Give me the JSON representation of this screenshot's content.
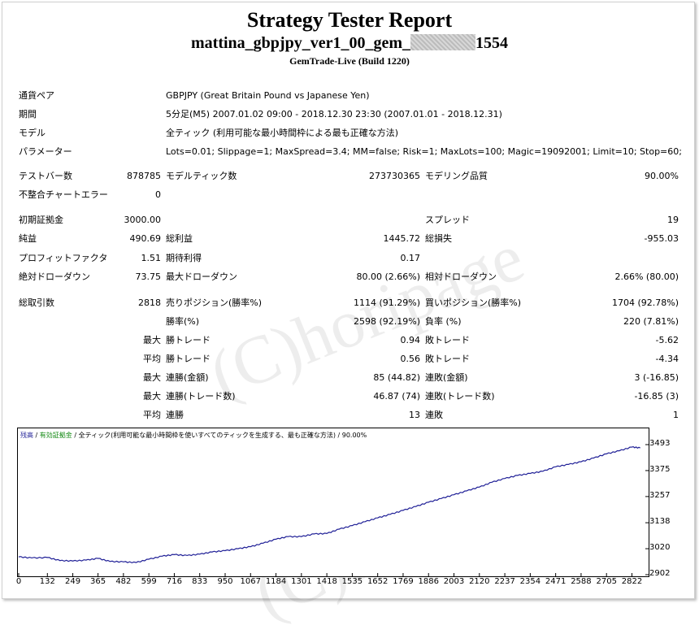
{
  "header": {
    "title": "Strategy Tester Report",
    "ea_name_prefix": "mattina_gbpjpy_ver1_00_gem_",
    "ea_name_suffix": "1554",
    "build": "GemTrade-Live (Build 1220)"
  },
  "watermark": "(C)horipage",
  "info": {
    "symbol_label": "通貨ペア",
    "symbol_value": "GBPJPY (Great Britain Pound vs Japanese Yen)",
    "period_label": "期間",
    "period_value": "5分足(M5) 2007.01.02 09:00 - 2018.12.30 23:30 (2007.01.01 - 2018.12.31)",
    "model_label": "モデル",
    "model_value": "全ティック (利用可能な最小時間枠による最も正確な方法)",
    "params_label": "パラメーター",
    "params_value": "Lots=0.01; Slippage=1; MaxSpread=3.4; MM=false; Risk=1; MaxLots=100; Magic=19092001; Limit=10; Stop=60;"
  },
  "stats": {
    "bars_label": "テストバー数",
    "bars_value": "878785",
    "ticks_label": "モデルティック数",
    "ticks_value": "273730365",
    "quality_label": "モデリング品質",
    "quality_value": "90.00%",
    "mismatch_label": "不整合チャートエラー",
    "mismatch_value": "0",
    "deposit_label": "初期証拠金",
    "deposit_value": "3000.00",
    "spread_label": "スプレッド",
    "spread_value": "19",
    "net_label": "純益",
    "net_value": "490.69",
    "gross_profit_label": "総利益",
    "gross_profit_value": "1445.72",
    "gross_loss_label": "総損失",
    "gross_loss_value": "-955.03",
    "pf_label": "プロフィットファクタ",
    "pf_value": "1.51",
    "expected_label": "期待利得",
    "expected_value": "0.17",
    "abs_dd_label": "絶対ドローダウン",
    "abs_dd_value": "73.75",
    "max_dd_label": "最大ドローダウン",
    "max_dd_value": "80.00 (2.66%)",
    "rel_dd_label": "相対ドローダウン",
    "rel_dd_value": "2.66% (80.00)",
    "trades_label": "総取引数",
    "trades_value": "2818",
    "short_label": "売りポジション(勝率%)",
    "short_value": "1114 (91.29%)",
    "long_label": "買いポジション(勝率%)",
    "long_value": "1704 (92.78%)",
    "win_label": "勝率(%)",
    "win_value": "2598 (92.19%)",
    "loss_label": "負率 (%)",
    "loss_value": "220 (7.81%)",
    "max_label": "最大",
    "avg_label": "平均",
    "largest_win_label": "勝トレード",
    "largest_win_value": "0.94",
    "largest_loss_label": "敗トレード",
    "largest_loss_value": "-5.62",
    "avg_win_label": "勝トレード",
    "avg_win_value": "0.56",
    "avg_loss_label": "敗トレード",
    "avg_loss_value": "-4.34",
    "max_cons_wins_label": "連勝(金額)",
    "max_cons_wins_value": "85 (44.82)",
    "max_cons_losses_label": "連敗(金額)",
    "max_cons_losses_value": "3 (-16.85)",
    "max_cons_profit_label": "連勝(トレード数)",
    "max_cons_profit_value": "46.87 (74)",
    "max_cons_loss_label": "連敗(トレード数)",
    "max_cons_loss_value": "-16.85 (3)",
    "avg_cons_wins_label": "連勝",
    "avg_cons_wins_value": "13",
    "avg_cons_losses_label": "連敗",
    "avg_cons_losses_value": "1"
  },
  "chart_legend": {
    "balance": "残高",
    "sep": " / ",
    "equity": "有効証拠金",
    "model": " / 全ティック(利用可能な最小時間枠を使いすべてのティックを生成する、最も正確な方法) / 90.00%"
  },
  "chart_data": {
    "type": "line",
    "series": [
      {
        "x": [
          0,
          60,
          132,
          190,
          249,
          310,
          365,
          420,
          482,
          540,
          599,
          660,
          716,
          775,
          833,
          890,
          950,
          1010,
          1067,
          1125,
          1184,
          1240,
          1301,
          1360,
          1418,
          1475,
          1535,
          1595,
          1652,
          1710,
          1769,
          1828,
          1886,
          1945,
          2003,
          2062,
          2120,
          2178,
          2237,
          2296,
          2354,
          2412,
          2471,
          2530,
          2588,
          2646,
          2705,
          2764,
          2822,
          2860
        ],
        "y": [
          2983,
          2978,
          2980,
          2966,
          2964,
          2968,
          2976,
          2962,
          2960,
          2957,
          2972,
          2986,
          2993,
          2989,
          2995,
          3005,
          3011,
          3020,
          3029,
          3045,
          3063,
          3075,
          3075,
          3087,
          3089,
          3109,
          3125,
          3143,
          3160,
          3176,
          3194,
          3212,
          3231,
          3248,
          3265,
          3283,
          3300,
          3322,
          3339,
          3353,
          3362,
          3372,
          3392,
          3403,
          3415,
          3432,
          3451,
          3465,
          3482,
          3478
        ]
      }
    ],
    "yticks": [
      2902,
      3020,
      3138,
      3257,
      3375,
      3493
    ],
    "xticks": [
      0,
      132,
      249,
      365,
      482,
      599,
      716,
      833,
      950,
      1067,
      1184,
      1301,
      1418,
      1535,
      1652,
      1769,
      1886,
      2003,
      2120,
      2237,
      2354,
      2471,
      2588,
      2705,
      2822
    ],
    "ylim": [
      2902,
      3493
    ],
    "xlim": [
      0,
      2880
    ],
    "line_color": "#1e1e96"
  }
}
